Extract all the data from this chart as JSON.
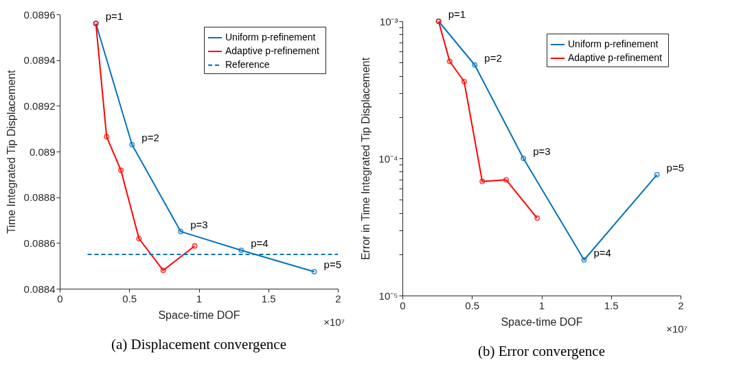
{
  "chart_data": [
    {
      "type": "line",
      "title": "(a) Displacement convergence",
      "xlabel": "Space-time DOF",
      "ylabel": "Time Integrated Tip Displacement",
      "xlim": [
        0,
        2
      ],
      "xticks": [
        0,
        0.5,
        1,
        1.5,
        2
      ],
      "ylim": [
        0.0884,
        0.0896
      ],
      "yticks": [
        0.0884,
        0.0886,
        0.0888,
        0.089,
        0.0892,
        0.0894,
        0.0896
      ],
      "legend": "top right",
      "grid": false,
      "series": [
        {
          "name": "Uniform  p-refinement",
          "color": "#0072bd",
          "marker": "circle",
          "line_style": "solid",
          "x": [
            0.26,
            0.52,
            0.87,
            1.305,
            1.83
          ],
          "values": [
            0.08956,
            0.08903,
            0.08865,
            0.088568,
            0.088474
          ]
        },
        {
          "name": "Adaptive  p-refinement",
          "color": "#ff0000",
          "marker": "circle",
          "line_style": "solid",
          "x": [
            0.26,
            0.337,
            0.44,
            0.57,
            0.744,
            0.97
          ],
          "values": [
            0.08956,
            0.089065,
            0.088918,
            0.088619,
            0.08848,
            0.088587
          ]
        },
        {
          "name": "Reference",
          "color": "#0072bd",
          "marker": "none",
          "line_style": "dashed",
          "x": [
            0.2,
            2
          ],
          "values": [
            0.08855,
            0.08855
          ]
        }
      ],
      "annotations": [
        {
          "text": "p=1",
          "x": 0.26,
          "y": 0.08956
        },
        {
          "text": "p=2",
          "x": 0.52,
          "y": 0.08903
        },
        {
          "text": "p=3",
          "x": 0.87,
          "y": 0.08865
        },
        {
          "text": "p=4",
          "x": 1.305,
          "y": 0.088568
        },
        {
          "text": "p=5",
          "x": 1.83,
          "y": 0.088474
        },
        "×10⁷"
      ]
    },
    {
      "type": "line",
      "title": "(b) Error convergence",
      "xlabel": "Space-time DOF",
      "ylabel": "Error in Time Integrated Tip Displacement",
      "xlim": [
        0,
        2
      ],
      "xticks": [
        0,
        0.5,
        1,
        1.5,
        2
      ],
      "ylim": [
        1e-05,
        0.001
      ],
      "log": true,
      "yticks": [
        {
          "value": 1e-05,
          "label": "10⁻⁵"
        },
        {
          "value": 2e-05,
          "label": null
        },
        {
          "value": 3e-05,
          "label": null
        },
        {
          "value": 4e-05,
          "label": null
        },
        {
          "value": 5e-05,
          "label": null
        },
        {
          "value": 6e-05,
          "label": null
        },
        {
          "value": 7e-05,
          "label": null
        },
        {
          "value": 8e-05,
          "label": null
        },
        {
          "value": 9e-05,
          "label": null
        },
        {
          "value": 0.0001,
          "label": "10⁻⁴"
        },
        {
          "value": 0.0002,
          "label": null
        },
        {
          "value": 0.0003,
          "label": null
        },
        {
          "value": 0.0004,
          "label": null
        },
        {
          "value": 0.0005,
          "label": null
        },
        {
          "value": 0.0006,
          "label": null
        },
        {
          "value": 0.0007,
          "label": null
        },
        {
          "value": 0.0008,
          "label": null
        },
        {
          "value": 0.0009,
          "label": null
        },
        {
          "value": 0.001,
          "label": "10⁻³"
        }
      ],
      "legend": "top right",
      "grid": false,
      "series": [
        {
          "name": "Uniform  p-refinement",
          "color": "#0072bd",
          "marker": "circle",
          "line_style": "solid",
          "x": [
            0.26,
            0.52,
            0.87,
            1.306,
            1.83
          ],
          "values": [
            0.001,
            0.00048,
            0.0001,
            1.82e-05,
            7.6e-05
          ]
        },
        {
          "name": "Adaptive  p-refinement",
          "color": "#ff0000",
          "marker": "circle",
          "line_style": "solid",
          "x": [
            0.26,
            0.34,
            0.444,
            0.574,
            0.746,
            0.969
          ],
          "values": [
            0.001,
            0.00051,
            0.000363,
            6.8e-05,
            6.97e-05,
            3.67e-05
          ]
        }
      ],
      "annotations": [
        {
          "text": "p=1",
          "x": 0.26,
          "y": 0.001
        },
        {
          "text": "p=2",
          "x": 0.52,
          "y": 0.00048
        },
        {
          "text": "p=3",
          "x": 0.87,
          "y": 0.0001
        },
        {
          "text": "p=4",
          "x": 1.306,
          "y": 1.82e-05
        },
        {
          "text": "p=5",
          "x": 1.83,
          "y": 7.6e-05
        },
        "×10⁷"
      ]
    }
  ]
}
